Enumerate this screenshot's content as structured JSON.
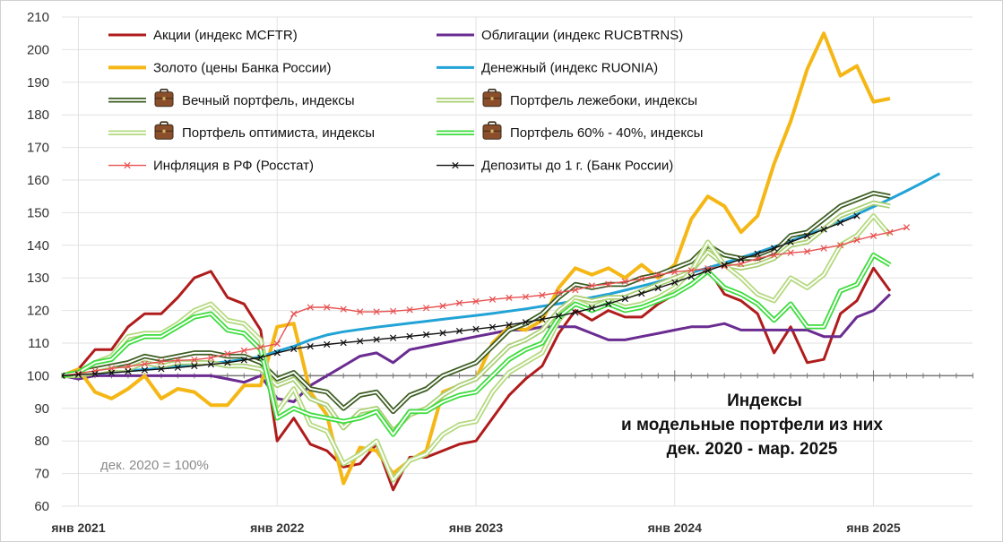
{
  "chart_data": {
    "type": "line",
    "title_lines": [
      "Индексы",
      "и модельные портфели из них",
      "дек. 2020 - мар. 2025"
    ],
    "base_note": "дек. 2020 = 100%",
    "ylim": [
      60,
      210
    ],
    "yticks": [
      60,
      70,
      80,
      90,
      100,
      110,
      120,
      130,
      140,
      150,
      160,
      170,
      180,
      190,
      200,
      210
    ],
    "x_start": "2020-12",
    "xticks": [
      {
        "label": "янв 2021",
        "month": 1
      },
      {
        "label": "янв 2022",
        "month": 13
      },
      {
        "label": "янв 2023",
        "month": 25
      },
      {
        "label": "янв 2024",
        "month": 37
      },
      {
        "label": "янв 2025",
        "month": 49
      }
    ],
    "series": [
      {
        "name": "Акции (индекс MCFTR)",
        "color": "#b01c1c",
        "width": 3,
        "style": "solid",
        "values": [
          100,
          102,
          108,
          108,
          115,
          119,
          119,
          124,
          130,
          132,
          124,
          122,
          114,
          80,
          87,
          79,
          77,
          72,
          73,
          79,
          65,
          75,
          75,
          77,
          79,
          80,
          87,
          94,
          99,
          103,
          113,
          120,
          117,
          120,
          118,
          118,
          122,
          125,
          128,
          133,
          125,
          123,
          119,
          107,
          115,
          104,
          105,
          119,
          123,
          133,
          126
        ]
      },
      {
        "name": "Облигации (индекс RUCBTRNS)",
        "color": "#6a2c91",
        "width": 3,
        "style": "solid",
        "values": [
          100,
          99,
          100,
          100,
          100,
          100,
          100,
          100,
          100,
          100,
          99,
          98,
          100,
          93,
          92,
          97,
          100,
          103,
          106,
          107,
          104,
          108,
          109,
          110,
          111,
          112,
          113,
          114,
          114,
          115,
          115,
          115,
          113,
          111,
          111,
          112,
          113,
          114,
          115,
          115,
          116,
          114,
          114,
          114,
          114,
          114,
          112,
          112,
          118,
          120,
          125
        ]
      },
      {
        "name": "Золото (цены Банка России)",
        "color": "#f5b716",
        "width": 4,
        "style": "solid",
        "values": [
          100,
          102,
          95,
          93,
          96,
          100,
          93,
          96,
          95,
          91,
          91,
          97,
          97,
          115,
          116,
          95,
          88,
          67,
          78,
          77,
          70,
          74,
          77,
          95,
          97,
          99,
          110,
          115,
          114,
          117,
          127,
          133,
          131,
          133,
          130,
          134,
          130,
          134,
          148,
          155,
          152,
          144,
          149,
          165,
          178,
          194,
          205,
          192,
          195,
          184,
          185
        ]
      },
      {
        "name": "Денежный (индекс RUONIA)",
        "color": "#22a3d6",
        "width": 3,
        "style": "solid",
        "values": [
          100,
          100.3,
          100.7,
          101.1,
          101.5,
          101.9,
          102.3,
          102.8,
          103.3,
          103.8,
          104.3,
          105,
          105.8,
          107.5,
          109,
          111,
          112.5,
          113.5,
          114.2,
          114.9,
          115.5,
          116.1,
          116.7,
          117.3,
          117.9,
          118.5,
          119.1,
          119.8,
          120.5,
          121.3,
          122.1,
          123,
          124,
          125,
          126.2,
          127.5,
          128.8,
          130.2,
          131.6,
          133.1,
          134.6,
          136.2,
          137.8,
          139.5,
          141.3,
          143.2,
          145.2,
          147.3,
          149.5,
          151.8,
          154.2,
          156.7,
          159.3,
          162
        ]
      },
      {
        "name": "Вечный портфель, индексы",
        "color": "#3d5e22",
        "width": 2,
        "style": "double",
        "icon": "briefcase",
        "values": [
          100,
          101,
          102,
          103,
          104,
          106,
          105,
          106,
          107,
          107,
          106,
          106,
          104,
          99,
          101,
          96,
          95,
          90,
          94,
          95,
          89,
          94,
          96,
          100,
          102,
          104,
          109,
          114,
          116,
          119,
          124,
          128,
          127,
          128,
          128,
          130,
          131,
          133,
          135,
          140,
          137,
          136,
          136,
          138,
          143,
          144,
          148,
          152,
          154,
          156,
          155
        ]
      },
      {
        "name": "Портфель лежебоки, индексы",
        "color": "#a9cf73",
        "width": 2,
        "style": "double",
        "icon": "briefcase",
        "values": [
          100,
          100,
          101,
          102,
          102,
          104,
          103,
          104,
          104,
          104,
          103,
          103,
          102,
          97,
          99,
          93,
          91,
          84,
          89,
          90,
          83,
          88,
          90,
          94,
          97,
          99,
          104,
          109,
          111,
          114,
          120,
          124,
          123,
          124,
          124,
          126,
          128,
          130,
          132,
          138,
          134,
          133,
          134,
          136,
          140,
          141,
          145,
          149,
          151,
          153,
          152
        ]
      },
      {
        "name": "Портфель оптимиста, индексы",
        "color": "#b4d97e",
        "width": 2,
        "style": "double",
        "icon": "briefcase",
        "values": [
          100,
          101,
          104,
          106,
          112,
          113,
          113,
          116,
          120,
          122,
          117,
          116,
          111,
          89,
          96,
          85,
          83,
          73,
          76,
          80,
          68,
          74,
          76,
          82,
          85,
          86,
          95,
          101,
          104,
          107,
          117,
          123,
          121,
          123,
          121,
          122,
          124,
          127,
          132,
          141,
          134,
          130,
          125,
          123,
          130,
          127,
          131,
          140,
          143,
          149,
          143
        ]
      },
      {
        "name": "Портфель 60% - 40%, индексы",
        "color": "#3bdc3b",
        "width": 2,
        "style": "double",
        "icon": "briefcase",
        "values": [
          100,
          101,
          104,
          105,
          110,
          112,
          112,
          115,
          118,
          119,
          114,
          113,
          108,
          87,
          90,
          88,
          87,
          86,
          87,
          89,
          82,
          89,
          89,
          92,
          94,
          95,
          100,
          105,
          108,
          110,
          118,
          122,
          120,
          122,
          120,
          121,
          123,
          125,
          128,
          132,
          127,
          125,
          122,
          117,
          122,
          115,
          115,
          126,
          128,
          137,
          134
        ]
      },
      {
        "name": "Инфляция в РФ (Росстат)",
        "color": "#e85050",
        "width": 1.4,
        "style": "marker-x",
        "values": [
          100,
          100.7,
          101.5,
          102.2,
          102.8,
          103.6,
          104.3,
          104.7,
          104.9,
          105.5,
          106.7,
          107.7,
          108.7,
          109.8,
          119,
          121,
          121,
          120.4,
          119.6,
          119.6,
          119.8,
          120.2,
          120.8,
          121.4,
          122.3,
          122.8,
          123.4,
          123.9,
          124.2,
          124.7,
          125.5,
          126.3,
          127.6,
          128.1,
          128.9,
          129.7,
          130.9,
          131.8,
          132.3,
          132.9,
          133.6,
          134.3,
          136,
          137,
          137.7,
          138.1,
          139.1,
          140,
          141.6,
          142.9,
          144,
          145.5
        ]
      },
      {
        "name": "Депозиты до 1 г. (Банк России)",
        "color": "#111111",
        "width": 1.4,
        "style": "marker-x",
        "values": [
          100,
          100.3,
          100.6,
          100.9,
          101.3,
          101.7,
          102.1,
          102.5,
          103,
          103.5,
          104,
          104.8,
          105.6,
          107,
          108.2,
          109,
          109.6,
          110.1,
          110.6,
          111.1,
          111.6,
          112.1,
          112.6,
          113.1,
          113.7,
          114.3,
          114.9,
          115.6,
          116.4,
          117.3,
          118.3,
          119.4,
          120.7,
          122.1,
          123.6,
          125.2,
          126.9,
          128.6,
          130.4,
          132.2,
          134,
          135.7,
          137.4,
          139.1,
          141,
          142.9,
          144.9,
          146.9,
          149
        ]
      }
    ]
  }
}
